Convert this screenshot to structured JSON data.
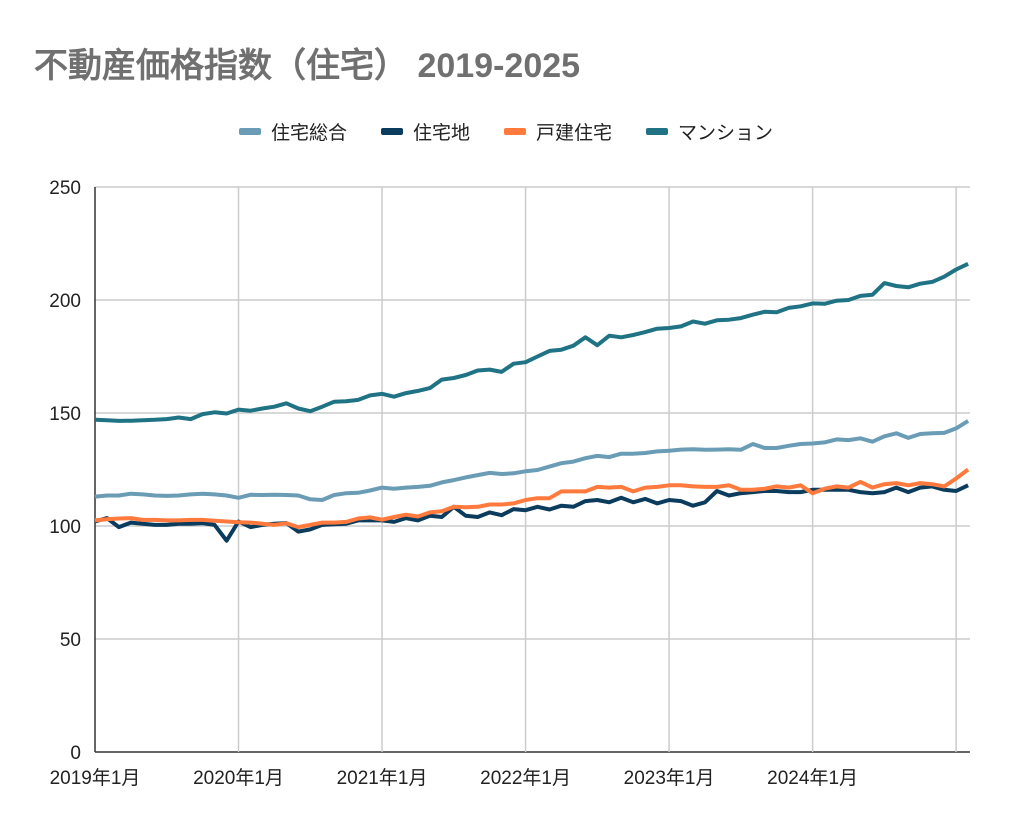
{
  "chart_data": {
    "type": "line",
    "title": "不動産価格指数（住宅） 2019-2025",
    "xlabel": "",
    "ylabel": "",
    "ylim": [
      0,
      250
    ],
    "yticks": [
      "0",
      "50",
      "100",
      "150",
      "200",
      "250"
    ],
    "xticks": [
      "2019年1月",
      "2020年1月",
      "2021年1月",
      "2022年1月",
      "2023年1月",
      "2024年1月"
    ],
    "x_start": "2019年1月",
    "x_end": "2025年2月",
    "grid": true,
    "legend": "top",
    "series": [
      {
        "name": "住宅総合",
        "color": "#6a9cb6",
        "values": [
          113,
          113.5,
          113.5,
          114.3,
          114,
          113.5,
          113.3,
          113.5,
          114,
          114.3,
          114,
          113.5,
          112.5,
          113.8,
          113.7,
          113.8,
          113.7,
          113.5,
          111.8,
          111.5,
          113.7,
          114.5,
          114.7,
          115.7,
          117,
          116.5,
          117,
          117.3,
          117.8,
          119.3,
          120.3,
          121.5,
          122.5,
          123.5,
          123,
          123.3,
          124.2,
          124.8,
          126.3,
          127.8,
          128.5,
          130,
          131,
          130.5,
          132,
          132,
          132.3,
          133,
          133.3,
          133.8,
          134,
          133.7,
          133.8,
          134,
          133.7,
          136.3,
          134.5,
          134.5,
          135.5,
          136.3,
          136.5,
          137,
          138.3,
          138,
          138.8,
          137.3,
          139.7,
          141,
          139,
          140.7,
          141,
          141.2,
          143.2,
          146.5
        ]
      },
      {
        "name": "住宅地",
        "color": "#0b3c5d",
        "values": [
          102,
          103.5,
          99.5,
          101.5,
          101,
          100.5,
          100.5,
          101,
          101,
          101.3,
          100.5,
          93.5,
          102,
          99.5,
          100.5,
          101,
          101.3,
          97.5,
          98.5,
          100.5,
          100.8,
          101,
          102.5,
          102.5,
          102.5,
          101.8,
          103.5,
          102.5,
          104.5,
          104,
          108.5,
          104.5,
          104,
          106,
          104.8,
          107.5,
          107,
          108.5,
          107.3,
          109,
          108.5,
          111,
          111.5,
          110.5,
          112.5,
          110.5,
          112,
          110,
          111.5,
          111,
          109,
          110.5,
          115.5,
          113.5,
          114.5,
          115,
          115.5,
          115.5,
          115,
          115,
          116,
          116,
          116,
          116,
          115,
          114.5,
          115,
          117,
          115,
          117,
          117.5,
          116,
          115.5,
          118
        ]
      },
      {
        "name": "戸建住宅",
        "color": "#ff7a3c",
        "values": [
          102.5,
          103,
          103.3,
          103.5,
          102.7,
          102.7,
          102.5,
          102.5,
          102.7,
          102.7,
          102.3,
          102,
          101.7,
          101.5,
          101,
          100.5,
          101.2,
          99.5,
          100.5,
          101.5,
          101.5,
          101.8,
          103.3,
          103.8,
          102.8,
          104,
          105,
          104.2,
          106,
          106.5,
          108.5,
          108.3,
          108.5,
          109.5,
          109.5,
          110,
          111.5,
          112.3,
          112.3,
          115.3,
          115.3,
          115.3,
          117.3,
          117,
          117.3,
          115.3,
          117,
          117.3,
          118,
          118,
          117.5,
          117.3,
          117.3,
          118,
          116,
          116,
          116.5,
          117.5,
          117,
          118,
          114.5,
          116.5,
          117.5,
          117,
          119.5,
          117,
          118.5,
          119,
          118,
          119,
          118.5,
          117.5,
          121,
          125
        ]
      },
      {
        "name": "マンション",
        "color": "#1f7384",
        "values": [
          147,
          146.8,
          146.5,
          146.6,
          146.8,
          147,
          147.3,
          148,
          147.3,
          149.5,
          150.3,
          149.8,
          151.5,
          151,
          152,
          152.8,
          154.3,
          152,
          150.8,
          152.8,
          155,
          155.2,
          155.8,
          157.8,
          158.5,
          157.2,
          158.8,
          159.8,
          161,
          164.8,
          165.5,
          166.8,
          168.8,
          169.2,
          168.2,
          171.8,
          172.5,
          175,
          177.5,
          178,
          179.8,
          183.5,
          180,
          184.2,
          183.5,
          184.5,
          185.8,
          187.3,
          187.6,
          188.3,
          190.5,
          189.5,
          191,
          191.3,
          192,
          193.5,
          194.8,
          194.6,
          196.5,
          197.2,
          198.5,
          198.3,
          199.7,
          200,
          201.8,
          202.3,
          207.5,
          206.2,
          205.6,
          207.2,
          208,
          210.3,
          213.5,
          216
        ]
      }
    ]
  }
}
